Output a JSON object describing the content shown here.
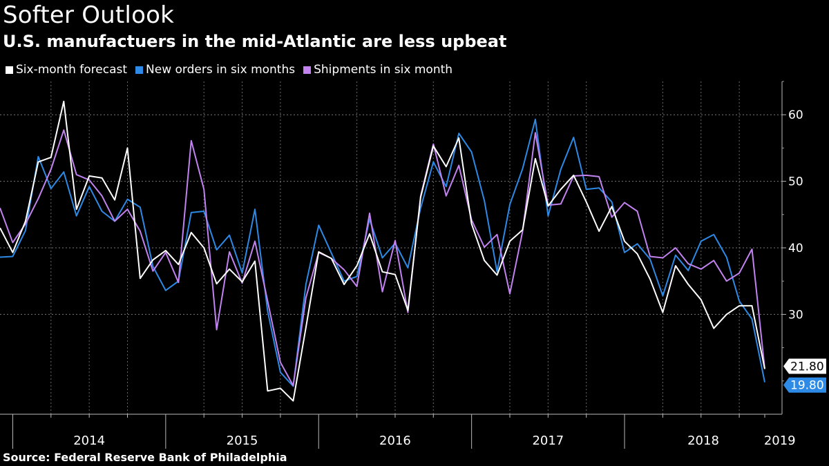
{
  "title": "Softer Outlook",
  "subtitle": "U.S. manufactuers in the mid-Atlantic are less upbeat",
  "source": "Source:  Federal Reserve Bank of Philadelphia",
  "legend": [
    {
      "label": "Six-month forecast",
      "color": "#ffffff"
    },
    {
      "label": "New orders in six months",
      "color": "#2d8ae6"
    },
    {
      "label": "Shipments in six month",
      "color": "#c283f0"
    }
  ],
  "chart_data": {
    "type": "line",
    "title": "Softer Outlook",
    "subtitle": "U.S. manufactuers in the mid-Atlantic are less upbeat",
    "x_start": "2013-12",
    "x_labels": [
      "2014",
      "2015",
      "2016",
      "2017",
      "2018",
      "2019"
    ],
    "ylim": [
      15,
      65
    ],
    "y_ticks": [
      60,
      50,
      40,
      30
    ],
    "grid": true,
    "legend_position": "top-left",
    "series": [
      {
        "name": "Six-month forecast",
        "color": "#ffffff",
        "values": [
          43,
          39.3,
          44,
          52.9,
          53.6,
          62,
          45.8,
          50.8,
          50.5,
          47.2,
          55,
          35.4,
          38.2,
          39.6,
          37.5,
          42.3,
          40,
          34.6,
          36.8,
          34.9,
          38,
          18.5,
          18.9,
          17,
          28,
          39.4,
          38.4,
          34.5,
          37.3,
          42.1,
          36.4,
          36,
          30.6,
          47.6,
          55.3,
          52.2,
          56.5,
          43.6,
          38.1,
          35.9,
          41,
          42.7,
          53.4,
          46.3,
          48.8,
          50.9,
          46.9,
          42.5,
          46.2,
          41,
          39.1,
          35.3,
          30.3,
          37.3,
          34.5,
          32.2,
          27.9,
          30,
          31.3,
          31.3,
          21.8
        ]
      },
      {
        "name": "New orders in six months",
        "color": "#2d8ae6",
        "values": [
          38.6,
          38.7,
          42.6,
          53.7,
          48.9,
          51.4,
          44.8,
          49.2,
          45.5,
          44,
          47.3,
          46.1,
          37.2,
          33.6,
          35,
          45.3,
          45.5,
          39.7,
          41.9,
          36.2,
          45.8,
          30.5,
          21.3,
          19.2,
          34.5,
          43.4,
          39.2,
          35,
          35.7,
          44.3,
          38.5,
          40.7,
          37,
          46,
          52.9,
          49.2,
          57.2,
          54.4,
          47.1,
          36.4,
          46.5,
          51.9,
          59.3,
          44.8,
          51.8,
          56.6,
          48.8,
          49,
          46.9,
          39.3,
          40.6,
          38.3,
          32.8,
          38.9,
          36.6,
          41,
          42,
          38.6,
          32,
          29.3,
          19.8
        ]
      },
      {
        "name": "Shipments in six month",
        "color": "#c283f0",
        "values": [
          46,
          40.8,
          43.6,
          47.4,
          51.8,
          57.7,
          51,
          50.2,
          47.8,
          44,
          45.8,
          42.5,
          36.5,
          39.3,
          34.8,
          56.1,
          48.8,
          27.7,
          39.4,
          34.7,
          41,
          32,
          22.8,
          19.3,
          32.5,
          39.3,
          38.4,
          36.7,
          34.2,
          45.2,
          33.4,
          41.1,
          30.3,
          47.8,
          55.6,
          47.8,
          52.4,
          44.2,
          40.1,
          42,
          33.1,
          42.5,
          57.3,
          46.4,
          46.6,
          50.8,
          50.9,
          50.7,
          44.6,
          46.8,
          45.5,
          38.7,
          38.5,
          40,
          37.6,
          36.8,
          38.1,
          35,
          36.2,
          39.8,
          21.8
        ]
      }
    ],
    "last_value_labels": [
      {
        "text": "21.80",
        "value": 21.8,
        "style": "white"
      },
      {
        "text": "19.80",
        "value": 19.8,
        "style": "blue"
      }
    ]
  }
}
